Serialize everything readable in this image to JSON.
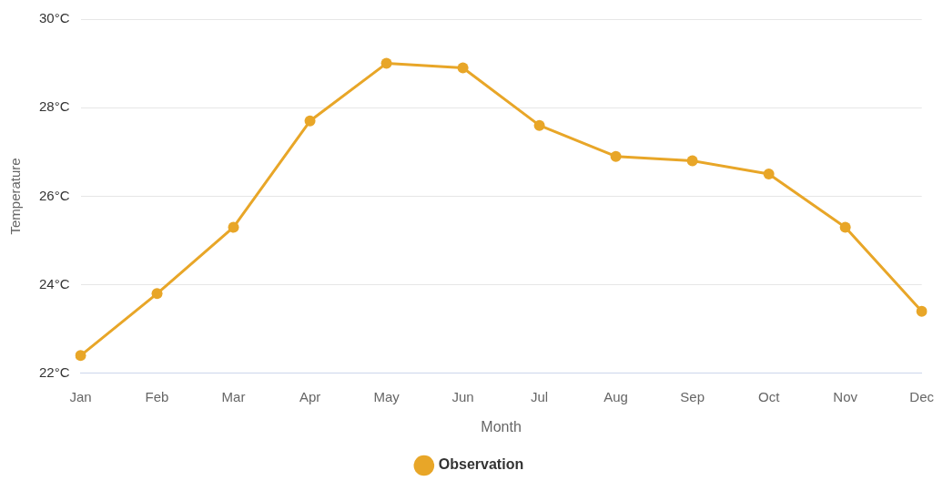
{
  "chart_data": {
    "type": "line",
    "xlabel": "Month",
    "ylabel": "Temperature",
    "categories": [
      "Jan",
      "Feb",
      "Mar",
      "Apr",
      "May",
      "Jun",
      "Jul",
      "Aug",
      "Sep",
      "Oct",
      "Nov",
      "Dec"
    ],
    "series": [
      {
        "name": "Observation",
        "color": "#e8a628",
        "values": [
          22.4,
          23.8,
          25.3,
          27.7,
          29.0,
          28.9,
          27.6,
          26.9,
          26.8,
          26.5,
          25.3,
          23.4
        ]
      }
    ],
    "ylim": [
      22,
      30
    ],
    "yticks": [
      {
        "value": 22,
        "label": "22°C"
      },
      {
        "value": 24,
        "label": "24°C"
      },
      {
        "value": 26,
        "label": "26°C"
      },
      {
        "value": 28,
        "label": "28°C"
      },
      {
        "value": 30,
        "label": "30°C"
      }
    ],
    "grid": "y",
    "legend": "bottom",
    "marker": "circle",
    "line_style": "solid"
  }
}
